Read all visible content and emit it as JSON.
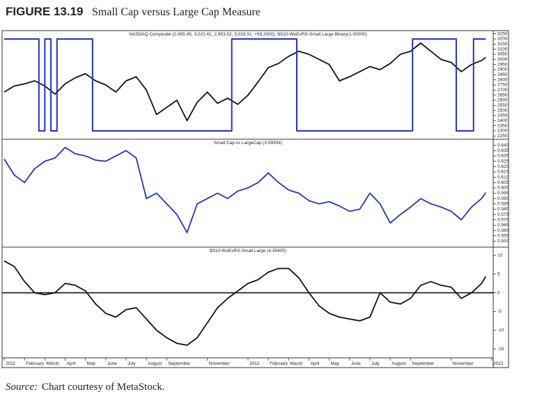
{
  "figure": {
    "label": "FIGURE 13.19",
    "title": "Small Cap versus Large Cap Measure",
    "source_label": "Source:",
    "source_text": "Chart courtesy of MetaStock."
  },
  "chart_data": [
    {
      "type": "line",
      "title": "NASDAQ Composite (2,955.45, 3,021.41, 2,953.52, 3,019.51, +59.2000), $S10-WoEvRS-Small Large Binary(1.00000)",
      "xlim": [
        0,
        24
      ],
      "ylim": [
        2225,
        3275
      ],
      "y2lim": [
        -0.0833,
        1.0833
      ],
      "yticks": [
        2250,
        2300,
        2350,
        2400,
        2450,
        2500,
        2550,
        2600,
        2650,
        2700,
        2750,
        2800,
        2850,
        2900,
        2950,
        3000,
        3050,
        3100,
        3150,
        3200,
        3250
      ],
      "x": [
        0,
        0.5,
        1,
        1.5,
        2,
        2.5,
        3,
        3.5,
        4,
        4.5,
        5,
        5.5,
        6,
        6.5,
        7,
        7.5,
        8,
        8.5,
        9,
        9.5,
        10,
        10.5,
        11,
        11.5,
        12,
        12.5,
        13,
        13.5,
        14,
        14.5,
        15,
        15.5,
        16,
        16.5,
        17,
        17.5,
        18,
        18.5,
        19,
        19.5,
        20,
        20.5,
        21,
        21.5,
        22,
        22.5,
        23,
        23.5,
        23.7
      ],
      "series": [
        {
          "color": "#111111",
          "values": [
            2680,
            2740,
            2760,
            2790,
            2740,
            2660,
            2760,
            2820,
            2860,
            2790,
            2750,
            2680,
            2790,
            2830,
            2700,
            2460,
            2530,
            2600,
            2400,
            2580,
            2680,
            2570,
            2620,
            2560,
            2650,
            2780,
            2920,
            2960,
            3030,
            3080,
            3050,
            3000,
            2950,
            2790,
            2830,
            2880,
            2930,
            2900,
            2960,
            3050,
            3080,
            3160,
            3080,
            3000,
            2970,
            2880,
            2950,
            2990,
            3019.51
          ]
        },
        {
          "color": "#2233bb",
          "axis": "y2",
          "x": [
            0,
            1.71,
            1.71,
            2.0,
            2.0,
            2.3,
            2.3,
            2.6,
            2.6,
            4.35,
            4.35,
            11.2,
            11.2,
            14.4,
            14.4,
            20.1,
            20.1,
            22.25,
            22.25,
            23.1,
            23.1,
            23.7
          ],
          "values": [
            1,
            1,
            0,
            0,
            1,
            1,
            0,
            0,
            1,
            1,
            0,
            0,
            1,
            1,
            0,
            0,
            1,
            1,
            0,
            0,
            1,
            1
          ]
        }
      ]
    },
    {
      "type": "line",
      "title": "Small Cap vs LargeCap (0.59554)",
      "xlim": [
        0,
        24
      ],
      "ylim": [
        0.545,
        0.645
      ],
      "yticks": [
        {
          "value": 0.55,
          "label": "0.550"
        },
        {
          "value": 0.555,
          "label": "0.555"
        },
        {
          "value": 0.56,
          "label": "0.560"
        },
        {
          "value": 0.565,
          "label": "0.565"
        },
        {
          "value": 0.57,
          "label": "0.570"
        },
        {
          "value": 0.575,
          "label": "0.575"
        },
        {
          "value": 0.58,
          "label": "0.580"
        },
        {
          "value": 0.585,
          "label": "0.585"
        },
        {
          "value": 0.59,
          "label": "0.590"
        },
        {
          "value": 0.595,
          "label": "0.595"
        },
        {
          "value": 0.6,
          "label": "0.600"
        },
        {
          "value": 0.605,
          "label": "0.605"
        },
        {
          "value": 0.61,
          "label": "0.610"
        },
        {
          "value": 0.615,
          "label": "0.615"
        },
        {
          "value": 0.62,
          "label": "0.620"
        },
        {
          "value": 0.625,
          "label": "0.625"
        },
        {
          "value": 0.63,
          "label": "0.630"
        },
        {
          "value": 0.635,
          "label": "0.635"
        },
        {
          "value": 0.64,
          "label": "0.640"
        }
      ],
      "x": [
        0,
        0.5,
        1,
        1.5,
        2,
        2.5,
        3,
        3.5,
        4,
        4.5,
        5,
        5.5,
        6,
        6.5,
        7,
        7.5,
        8,
        8.5,
        9,
        9.5,
        10,
        10.5,
        11,
        11.5,
        12,
        12.5,
        13,
        13.5,
        14,
        14.5,
        15,
        15.5,
        16,
        16.5,
        17,
        17.5,
        18,
        18.5,
        19,
        19.5,
        20,
        20.5,
        21,
        21.5,
        22,
        22.5,
        23,
        23.5,
        23.7
      ],
      "series": [
        {
          "color": "#2233bb",
          "values": [
            0.627,
            0.612,
            0.605,
            0.618,
            0.625,
            0.628,
            0.638,
            0.632,
            0.63,
            0.626,
            0.625,
            0.63,
            0.635,
            0.628,
            0.59,
            0.595,
            0.585,
            0.575,
            0.558,
            0.585,
            0.59,
            0.595,
            0.59,
            0.597,
            0.6,
            0.605,
            0.614,
            0.605,
            0.598,
            0.595,
            0.588,
            0.585,
            0.587,
            0.583,
            0.578,
            0.58,
            0.595,
            0.585,
            0.567,
            0.575,
            0.582,
            0.59,
            0.585,
            0.582,
            0.578,
            0.57,
            0.582,
            0.59,
            0.59554
          ]
        }
      ]
    },
    {
      "type": "line",
      "title": "$S10-WoEvRS-Small Large (4.35405)",
      "xlim": [
        0,
        24
      ],
      "ylim": [
        -17,
        12
      ],
      "yticks": [
        -15,
        -10,
        -5,
        0,
        5,
        10
      ],
      "xticks": [
        {
          "value": 0,
          "label": "2011"
        },
        {
          "value": 1,
          "label": "February"
        },
        {
          "value": 2,
          "label": "March"
        },
        {
          "value": 3,
          "label": "April"
        },
        {
          "value": 4,
          "label": "May"
        },
        {
          "value": 5,
          "label": "June"
        },
        {
          "value": 6,
          "label": "July"
        },
        {
          "value": 7,
          "label": "August"
        },
        {
          "value": 8,
          "label": "September"
        },
        {
          "value": 10,
          "label": "November"
        },
        {
          "value": 12,
          "label": "2012"
        },
        {
          "value": 13,
          "label": "February"
        },
        {
          "value": 14,
          "label": "March"
        },
        {
          "value": 15,
          "label": "April"
        },
        {
          "value": 16,
          "label": "May"
        },
        {
          "value": 17,
          "label": "June"
        },
        {
          "value": 18,
          "label": "July"
        },
        {
          "value": 19,
          "label": "August"
        },
        {
          "value": 20,
          "label": "September"
        },
        {
          "value": 22,
          "label": "November"
        },
        {
          "value": 24,
          "label": "2013"
        }
      ],
      "x": [
        0,
        0.5,
        1,
        1.5,
        2,
        2.5,
        3,
        3.5,
        4,
        4.5,
        5,
        5.5,
        6,
        6.5,
        7,
        7.5,
        8,
        8.5,
        9,
        9.5,
        10,
        10.5,
        11,
        11.5,
        12,
        12.5,
        13,
        13.5,
        14,
        14.5,
        15,
        15.5,
        16,
        16.5,
        17,
        17.5,
        18,
        18.5,
        19,
        19.5,
        20,
        20.5,
        21,
        21.5,
        22,
        22.5,
        23,
        23.5,
        23.7
      ],
      "series": [
        {
          "color": "#111111",
          "values": [
            8.5,
            7,
            3,
            0,
            -0.5,
            0,
            2.5,
            2,
            0.5,
            -3,
            -5.5,
            -6.5,
            -4.5,
            -4,
            -7,
            -10,
            -12,
            -13.5,
            -14,
            -12,
            -8,
            -4,
            -1.5,
            0.5,
            2.5,
            3.5,
            5.5,
            6.5,
            6.5,
            4,
            0,
            -3.5,
            -5.5,
            -6.5,
            -7,
            -7.5,
            -6.5,
            0,
            -2.5,
            -3,
            -1.5,
            2,
            3,
            2,
            1.5,
            -1.5,
            0,
            2.5,
            4.35405
          ]
        }
      ]
    }
  ]
}
